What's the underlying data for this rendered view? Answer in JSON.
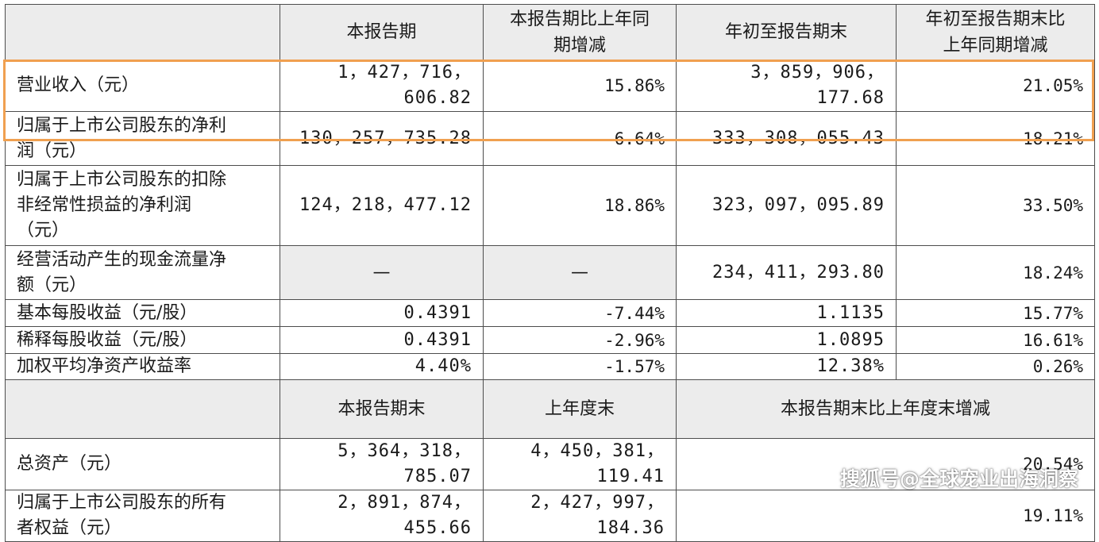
{
  "header": {
    "col1": "本报告期",
    "col2_line1": "本报告期比上年同",
    "col2_line2": "期增减",
    "col3": "年初至报告期末",
    "col4_line1": "年初至报告期末比",
    "col4_line2": "上年同期增减"
  },
  "rows": [
    {
      "label_l1": "营业收入（元）",
      "c1": "1，427，716，606.82",
      "c2": "15.86%",
      "c3": "3，859，906，177.68",
      "c4": "21.05%"
    },
    {
      "label_l1": "归属于上市公司股东的净利",
      "label_l2": "润（元）",
      "c1": "130，257，735.28",
      "c2": "-6.64%",
      "c3": "333，308，055.43",
      "c4": "18.21%"
    },
    {
      "label_l1": "归属于上市公司股东的扣除",
      "label_l2": "非经常性损益的净利润",
      "label_l3": "（元）",
      "c1": "124，218，477.12",
      "c2": "18.86%",
      "c3": "323，097，095.89",
      "c4": "33.50%"
    },
    {
      "label_l1": "经营活动产生的现金流量净",
      "label_l2": "额（元）",
      "c1": "—",
      "c2": "—",
      "c3": "234，411，293.80",
      "c4": "18.24%"
    },
    {
      "label_l1": "基本每股收益（元/股）",
      "c1": "0.4391",
      "c2": "-7.44%",
      "c3": "1.1135",
      "c4": "15.77%"
    },
    {
      "label_l1": "稀释每股收益（元/股）",
      "c1": "0.4391",
      "c2": "-2.96%",
      "c3": "1.0895",
      "c4": "16.61%"
    },
    {
      "label_l1": "加权平均净资产收益率",
      "c1": "4.40%",
      "c2": "-1.57%",
      "c3": "12.38%",
      "c4": "0.26%"
    }
  ],
  "header2": {
    "col1": "本报告期末",
    "col2": "上年度末",
    "col3": "本报告期末比上年度末增减"
  },
  "rows2": [
    {
      "label_l1": "总资产（元）",
      "c1": "5，364，318，785.07",
      "c2": "4，450，381，119.41",
      "c3": "20.54%"
    },
    {
      "label_l1": "归属于上市公司股东的所有",
      "label_l2": "者权益（元）",
      "c1": "2，891，874，455.66",
      "c2": "2，427，997，184.36",
      "c3": "19.11%"
    }
  ],
  "watermark": "搜狐号@全球宠业出海洞察",
  "colors": {
    "highlight_border": "#f0a050",
    "header_bg": "#ececec",
    "grid": "#4d4d4d"
  }
}
